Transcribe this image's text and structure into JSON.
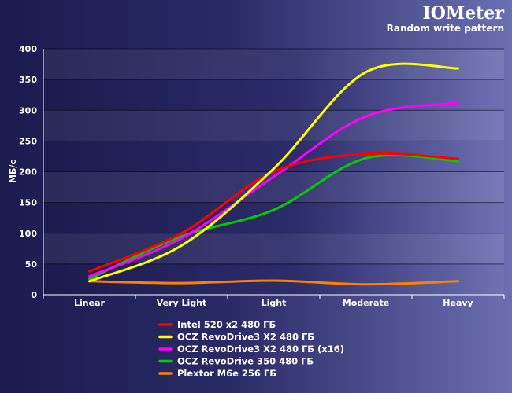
{
  "chart_data": {
    "type": "line",
    "title": "IOMeter",
    "subtitle": "Random write pattern",
    "xlabel": "",
    "ylabel": "МБ/с",
    "categories": [
      "Linear",
      "Very Light",
      "Light",
      "Moderate",
      "Heavy"
    ],
    "ylim": [
      0,
      400
    ],
    "yticks": [
      0,
      50,
      100,
      150,
      200,
      250,
      300,
      350,
      400
    ],
    "grid": true,
    "legend_position": "bottom",
    "series": [
      {
        "name": "Intel 520 x2 480 ГБ",
        "color": "#ff0000",
        "values": [
          38,
          100,
          200,
          229,
          221
        ]
      },
      {
        "name": "OCZ RevoDrive3 X2 480 ГБ",
        "color": "#ffff00",
        "values": [
          22,
          80,
          205,
          362,
          368
        ]
      },
      {
        "name": "OCZ RevoDrive3 X2 480 ГБ (x16)",
        "color": "#ff00ff",
        "values": [
          30,
          92,
          192,
          290,
          312
        ]
      },
      {
        "name": "OCZ RevoDrive 350 480 ГБ",
        "color": "#00cc00",
        "values": [
          26,
          95,
          138,
          222,
          217
        ]
      },
      {
        "name": "Plextor M6e 256 ГБ",
        "color": "#ff8000",
        "values": [
          22,
          19,
          23,
          17,
          22
        ]
      }
    ]
  }
}
